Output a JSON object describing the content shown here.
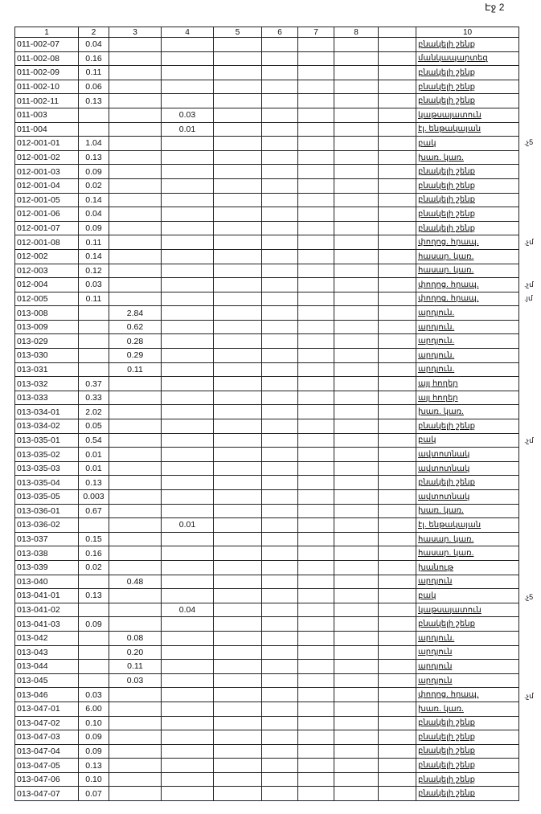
{
  "page_label": "Էջ 2",
  "columns": [
    "1",
    "2",
    "3",
    "4",
    "5",
    "6",
    "7",
    "8",
    "",
    "10"
  ],
  "rows": [
    [
      "011-002-07",
      "0.04",
      "",
      "",
      "բնակելի շենք",
      ""
    ],
    [
      "011-002-08",
      "0.16",
      "",
      "",
      "մանկապարտեզ",
      ""
    ],
    [
      "011-002-09",
      "0.11",
      "",
      "",
      "բնակելի շենք",
      ""
    ],
    [
      "011-002-10",
      "0.06",
      "",
      "",
      "բնակելի շենք",
      ""
    ],
    [
      "011-002-11",
      "0.13",
      "",
      "",
      "բնակելի շենք",
      ""
    ],
    [
      "011-003",
      "",
      "",
      "0.03",
      "կաթսայատուն",
      ""
    ],
    [
      "011-004",
      "",
      "",
      "0.01",
      "էլ. ենթակայան",
      ""
    ],
    [
      "012-001-01",
      "1.04",
      "",
      "",
      "բակ",
      ".չ5"
    ],
    [
      "012-001-02",
      "0.13",
      "",
      "",
      "խառ. կառ.",
      ""
    ],
    [
      "012-001-03",
      "0.09",
      "",
      "",
      "բնակելի շենք",
      ""
    ],
    [
      "012-001-04",
      "0.02",
      "",
      "",
      "բնակելի շենք",
      ""
    ],
    [
      "012-001-05",
      "0.14",
      "",
      "",
      "բնակելի շենք",
      ""
    ],
    [
      "012-001-06",
      "0.04",
      "",
      "",
      "բնակելի շենք",
      ""
    ],
    [
      "012-001-07",
      "0.09",
      "",
      "",
      "բնակելի շենք",
      ""
    ],
    [
      "012-001-08",
      "0.11",
      "",
      "",
      "փողոց. հրապ.",
      ".չմ"
    ],
    [
      "012-002",
      "0.14",
      "",
      "",
      "հասար. կառ.",
      ""
    ],
    [
      "012-003",
      "0.12",
      "",
      "",
      "հասար. կառ.",
      ""
    ],
    [
      "012-004",
      "0.03",
      "",
      "",
      "փողոց. հրապ.",
      ".չմ"
    ],
    [
      "012-005",
      "0.11",
      "",
      "",
      "փողոց. հրապ.",
      ".յմ"
    ],
    [
      "013-008",
      "",
      "2.84",
      "",
      "արդյուն.",
      ""
    ],
    [
      "013-009",
      "",
      "0.62",
      "",
      "արդյուն.",
      ""
    ],
    [
      "013-029",
      "",
      "0.28",
      "",
      "արդյուն.",
      ""
    ],
    [
      "013-030",
      "",
      "0.29",
      "",
      "արդյուն.",
      ""
    ],
    [
      "013-031",
      "",
      "0.11",
      "",
      "արդյուն.",
      ""
    ],
    [
      "013-032",
      "0.37",
      "",
      "",
      "այլ հողեր",
      ""
    ],
    [
      "013-033",
      "0.33",
      "",
      "",
      "այլ հողեր",
      ""
    ],
    [
      "013-034-01",
      "2.02",
      "",
      "",
      "խառ. կառ.",
      ""
    ],
    [
      "013-034-02",
      "0.05",
      "",
      "",
      "բնակելի շենք",
      ""
    ],
    [
      "013-035-01",
      "0.54",
      "",
      "",
      "բակ",
      ".չմ"
    ],
    [
      "013-035-02",
      "0.01",
      "",
      "",
      "ավտոտնակ",
      ""
    ],
    [
      "013-035-03",
      "0.01",
      "",
      "",
      "ավտոտնակ",
      ""
    ],
    [
      "013-035-04",
      "0.13",
      "",
      "",
      "բնակելի շենք",
      ""
    ],
    [
      "013-035-05",
      "0.003",
      "",
      "",
      "ավտոտնակ",
      ""
    ],
    [
      "013-036-01",
      "0.67",
      "",
      "",
      "խառ. կառ.",
      ""
    ],
    [
      "013-036-02",
      "",
      "",
      "0.01",
      "էլ. ենթակայան",
      ""
    ],
    [
      "013-037",
      "0.15",
      "",
      "",
      "հասար. կառ.",
      ""
    ],
    [
      "013-038",
      "0.16",
      "",
      "",
      "հասար. կառ.",
      ""
    ],
    [
      "013-039",
      "0.02",
      "",
      "",
      "խանութ",
      ""
    ],
    [
      "013-040",
      "",
      "0.48",
      "",
      "արդյուն",
      ""
    ],
    [
      "013-041-01",
      "0.13",
      "",
      "",
      "բակ",
      ".չ5"
    ],
    [
      "013-041-02",
      "",
      "",
      "0.04",
      "կաթսայատուն",
      ""
    ],
    [
      "013-041-03",
      "0.09",
      "",
      "",
      "բնակելի շենք",
      ""
    ],
    [
      "013-042",
      "",
      "0.08",
      "",
      "արդյուն.",
      ""
    ],
    [
      "013-043",
      "",
      "0.20",
      "",
      "արդյուն",
      ""
    ],
    [
      "013-044",
      "",
      "0.11",
      "",
      "արդյուն",
      ""
    ],
    [
      "013-045",
      "",
      "0.03",
      "",
      "արդյուն",
      ""
    ],
    [
      "013-046",
      "0.03",
      "",
      "",
      "փողոց. հրապ.",
      ".չմ"
    ],
    [
      "013-047-01",
      "6.00",
      "",
      "",
      "խառ. կառ.",
      ""
    ],
    [
      "013-047-02",
      "0.10",
      "",
      "",
      "բնակելի շենք",
      ""
    ],
    [
      "013-047-03",
      "0.09",
      "",
      "",
      "բնակելի շենք",
      ""
    ],
    [
      "013-047-04",
      "0.09",
      "",
      "",
      "բնակելի շենք",
      ""
    ],
    [
      "013-047-05",
      "0.13",
      "",
      "",
      "բնակելի շենք",
      ""
    ],
    [
      "013-047-06",
      "0.10",
      "",
      "",
      "բնակելի շենք",
      ""
    ],
    [
      "013-047-07",
      "0.07",
      "",
      "",
      "բնակելի շենք",
      ""
    ]
  ]
}
